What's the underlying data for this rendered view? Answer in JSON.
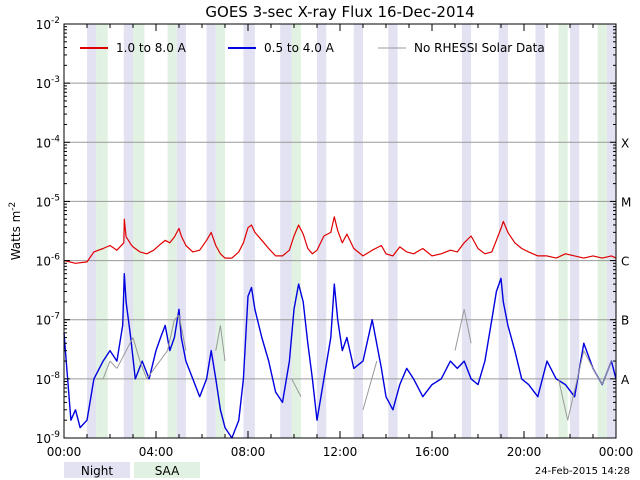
{
  "chart_data": {
    "type": "line",
    "title": "GOES 3-sec X-ray Flux   16-Dec-2014",
    "ylabel": "Watts m",
    "ylabel_sup": "-2",
    "y_scale": "log",
    "ylim": [
      1e-09,
      0.01
    ],
    "y_ticks": [
      {
        "base": "10",
        "exp": "-9"
      },
      {
        "base": "10",
        "exp": "-8"
      },
      {
        "base": "10",
        "exp": "-7"
      },
      {
        "base": "10",
        "exp": "-6"
      },
      {
        "base": "10",
        "exp": "-5"
      },
      {
        "base": "10",
        "exp": "-4"
      },
      {
        "base": "10",
        "exp": "-3"
      },
      {
        "base": "10",
        "exp": "-2"
      }
    ],
    "xlim_hours": [
      0,
      24
    ],
    "x_ticks": [
      "00:00",
      "04:00",
      "08:00",
      "12:00",
      "16:00",
      "20:00",
      "00:00"
    ],
    "flare_classes": [
      {
        "label": "A",
        "decade": -8
      },
      {
        "label": "B",
        "decade": -7
      },
      {
        "label": "C",
        "decade": -6
      },
      {
        "label": "M",
        "decade": -5
      },
      {
        "label": "X",
        "decade": -4
      }
    ],
    "grid": true,
    "legend": {
      "placement": "top",
      "entries": [
        {
          "label": "1.0 to 8.0 A",
          "color": "#e00000"
        },
        {
          "label": "0.5 to 4.0 A",
          "color": "#0000e0"
        },
        {
          "label": "No RHESSI Solar Data",
          "color": "#999999"
        }
      ]
    },
    "band_legend": [
      {
        "label": "Night",
        "color": "#e2e2f2"
      },
      {
        "label": "SAA",
        "color": "#e2f2e2"
      }
    ],
    "night_intervals_hours": [
      [
        1.0,
        1.4
      ],
      [
        2.6,
        3.0
      ],
      [
        4.9,
        5.3
      ],
      [
        6.2,
        6.6
      ],
      [
        7.8,
        8.3
      ],
      [
        9.4,
        9.9
      ],
      [
        11.0,
        11.4
      ],
      [
        12.6,
        13.0
      ],
      [
        14.1,
        14.5
      ],
      [
        17.3,
        17.7
      ],
      [
        18.9,
        19.3
      ],
      [
        20.5,
        20.9
      ],
      [
        22.0,
        22.4
      ],
      [
        23.6,
        24.0
      ]
    ],
    "saa_intervals_hours": [
      [
        1.4,
        1.9
      ],
      [
        3.0,
        3.5
      ],
      [
        4.5,
        4.9
      ],
      [
        6.6,
        7.0
      ],
      [
        9.9,
        10.3
      ],
      [
        21.5,
        21.9
      ],
      [
        23.2,
        23.6
      ]
    ],
    "series": [
      {
        "name": "1.0 to 8.0 A",
        "color": "#e00000",
        "x": [
          0,
          0.5,
          1,
          1.3,
          1.7,
          2.0,
          2.3,
          2.6,
          2.62,
          2.7,
          2.8,
          2.9,
          3.0,
          3.3,
          3.6,
          3.9,
          4.2,
          4.4,
          4.6,
          4.8,
          5.0,
          5.1,
          5.3,
          5.6,
          5.9,
          6.2,
          6.4,
          6.6,
          6.8,
          7.0,
          7.3,
          7.6,
          7.8,
          8.0,
          8.15,
          8.3,
          8.6,
          8.9,
          9.2,
          9.5,
          9.8,
          10.0,
          10.2,
          10.4,
          10.6,
          10.8,
          11.0,
          11.3,
          11.6,
          11.75,
          11.9,
          12.1,
          12.3,
          12.6,
          13.0,
          13.4,
          13.8,
          14.0,
          14.3,
          14.6,
          14.9,
          15.2,
          15.6,
          16.0,
          16.4,
          16.8,
          17.1,
          17.4,
          17.7,
          18.0,
          18.3,
          18.6,
          18.8,
          19.0,
          19.1,
          19.3,
          19.6,
          19.9,
          20.2,
          20.6,
          21.0,
          21.4,
          21.8,
          22.2,
          22.6,
          23.0,
          23.4,
          23.8,
          24.0
        ],
        "y": [
          1e-06,
          9e-07,
          9.5e-07,
          1.4e-06,
          1.6e-06,
          1.8e-06,
          1.5e-06,
          2e-06,
          5e-06,
          2.5e-06,
          2.2e-06,
          1.9e-06,
          1.7e-06,
          1.4e-06,
          1.3e-06,
          1.5e-06,
          1.9e-06,
          2.2e-06,
          2e-06,
          2.5e-06,
          3.5e-06,
          2.6e-06,
          1.8e-06,
          1.4e-06,
          1.5e-06,
          2.2e-06,
          3e-06,
          1.8e-06,
          1.3e-06,
          1.1e-06,
          1.1e-06,
          1.4e-06,
          2e-06,
          3.6e-06,
          4e-06,
          3e-06,
          2.2e-06,
          1.6e-06,
          1.2e-06,
          1.2e-06,
          1.5e-06,
          2.6e-06,
          4e-06,
          2.8e-06,
          1.6e-06,
          1.3e-06,
          1.5e-06,
          2.6e-06,
          3e-06,
          5.5e-06,
          3.2e-06,
          2e-06,
          2.8e-06,
          1.6e-06,
          1.2e-06,
          1.5e-06,
          1.8e-06,
          1.3e-06,
          1.2e-06,
          1.7e-06,
          1.4e-06,
          1.3e-06,
          1.6e-06,
          1.2e-06,
          1.3e-06,
          1.5e-06,
          1.4e-06,
          2e-06,
          2.6e-06,
          1.6e-06,
          1.3e-06,
          1.4e-06,
          2.2e-06,
          3.5e-06,
          4.6e-06,
          3e-06,
          2e-06,
          1.6e-06,
          1.4e-06,
          1.2e-06,
          1.2e-06,
          1.1e-06,
          1.3e-06,
          1.2e-06,
          1.1e-06,
          1.2e-06,
          1.1e-06,
          1.2e-06,
          1.1e-06
        ]
      },
      {
        "name": "0.5 to 4.0 A",
        "color": "#0000e0",
        "x": [
          0,
          0.3,
          0.5,
          0.7,
          1.0,
          1.3,
          1.7,
          2.0,
          2.3,
          2.55,
          2.62,
          2.7,
          2.8,
          2.9,
          3.1,
          3.4,
          3.7,
          4.0,
          4.2,
          4.4,
          4.6,
          4.8,
          5.0,
          5.1,
          5.3,
          5.6,
          5.9,
          6.2,
          6.4,
          6.6,
          6.8,
          7.0,
          7.3,
          7.6,
          7.8,
          8.0,
          8.15,
          8.3,
          8.6,
          8.9,
          9.2,
          9.5,
          9.8,
          10.0,
          10.2,
          10.4,
          10.6,
          10.8,
          11.0,
          11.3,
          11.6,
          11.75,
          11.9,
          12.1,
          12.3,
          12.6,
          13.0,
          13.4,
          13.8,
          14.0,
          14.3,
          14.6,
          14.9,
          15.2,
          15.6,
          16.0,
          16.4,
          16.8,
          17.1,
          17.4,
          17.7,
          18.0,
          18.3,
          18.6,
          18.8,
          19.0,
          19.1,
          19.3,
          19.6,
          19.9,
          20.2,
          20.6,
          21.0,
          21.4,
          21.8,
          22.2,
          22.6,
          23.0,
          23.4,
          23.8,
          24.0
        ],
        "y": [
          6e-08,
          2e-09,
          3e-09,
          1.5e-09,
          2e-09,
          1e-08,
          2e-08,
          3e-08,
          2e-08,
          8e-08,
          6e-07,
          2e-07,
          1e-07,
          5e-08,
          1e-08,
          2e-08,
          1e-08,
          3e-08,
          5e-08,
          8e-08,
          3e-08,
          5e-08,
          1.5e-07,
          5e-08,
          2e-08,
          1e-08,
          5e-09,
          1e-08,
          3e-08,
          1e-08,
          3e-09,
          1.5e-09,
          1e-09,
          2e-09,
          1e-08,
          2.5e-07,
          3.5e-07,
          1.5e-07,
          5e-08,
          2e-08,
          6e-09,
          4e-09,
          2e-08,
          1.5e-07,
          4e-07,
          2e-07,
          4e-08,
          1e-08,
          2e-09,
          1e-08,
          5e-08,
          4e-07,
          1e-07,
          3e-08,
          5e-08,
          1.5e-08,
          2e-08,
          1e-07,
          1.5e-08,
          5e-09,
          3e-09,
          8e-09,
          1.5e-08,
          1e-08,
          5e-09,
          8e-09,
          1e-08,
          2e-08,
          1.5e-08,
          2e-08,
          1e-08,
          8e-09,
          2e-08,
          1e-07,
          3e-07,
          5e-07,
          2e-07,
          8e-08,
          3e-08,
          1e-08,
          8e-09,
          5e-09,
          2e-08,
          1e-08,
          8e-09,
          5e-09,
          4e-08,
          1.5e-08,
          8e-09,
          2e-08,
          1e-08
        ]
      },
      {
        "name": "No RHESSI Solar Data",
        "color": "#999999",
        "x": [
          1.4,
          1.7,
          2.0,
          2.3,
          3.0,
          3.3,
          3.6,
          4.5,
          4.8,
          5.0,
          5.3,
          6.6,
          6.8,
          7.0,
          9.9,
          10.3,
          13.0,
          13.6,
          17.0,
          17.4,
          17.7,
          21.5,
          21.9,
          22.6,
          23.0,
          23.4,
          23.8
        ],
        "y": [
          1e-08,
          1e-08,
          2e-08,
          1.5e-08,
          5e-08,
          2e-08,
          1e-08,
          3e-08,
          1e-07,
          1.2e-07,
          3e-08,
          3e-08,
          8e-08,
          2e-08,
          1e-08,
          5e-09,
          3e-09,
          2e-08,
          3e-08,
          1.5e-07,
          4e-08,
          1e-08,
          2e-09,
          3e-08,
          1.5e-08,
          8e-09,
          2e-08
        ]
      }
    ],
    "timestamp": "24-Feb-2015 14:28"
  }
}
